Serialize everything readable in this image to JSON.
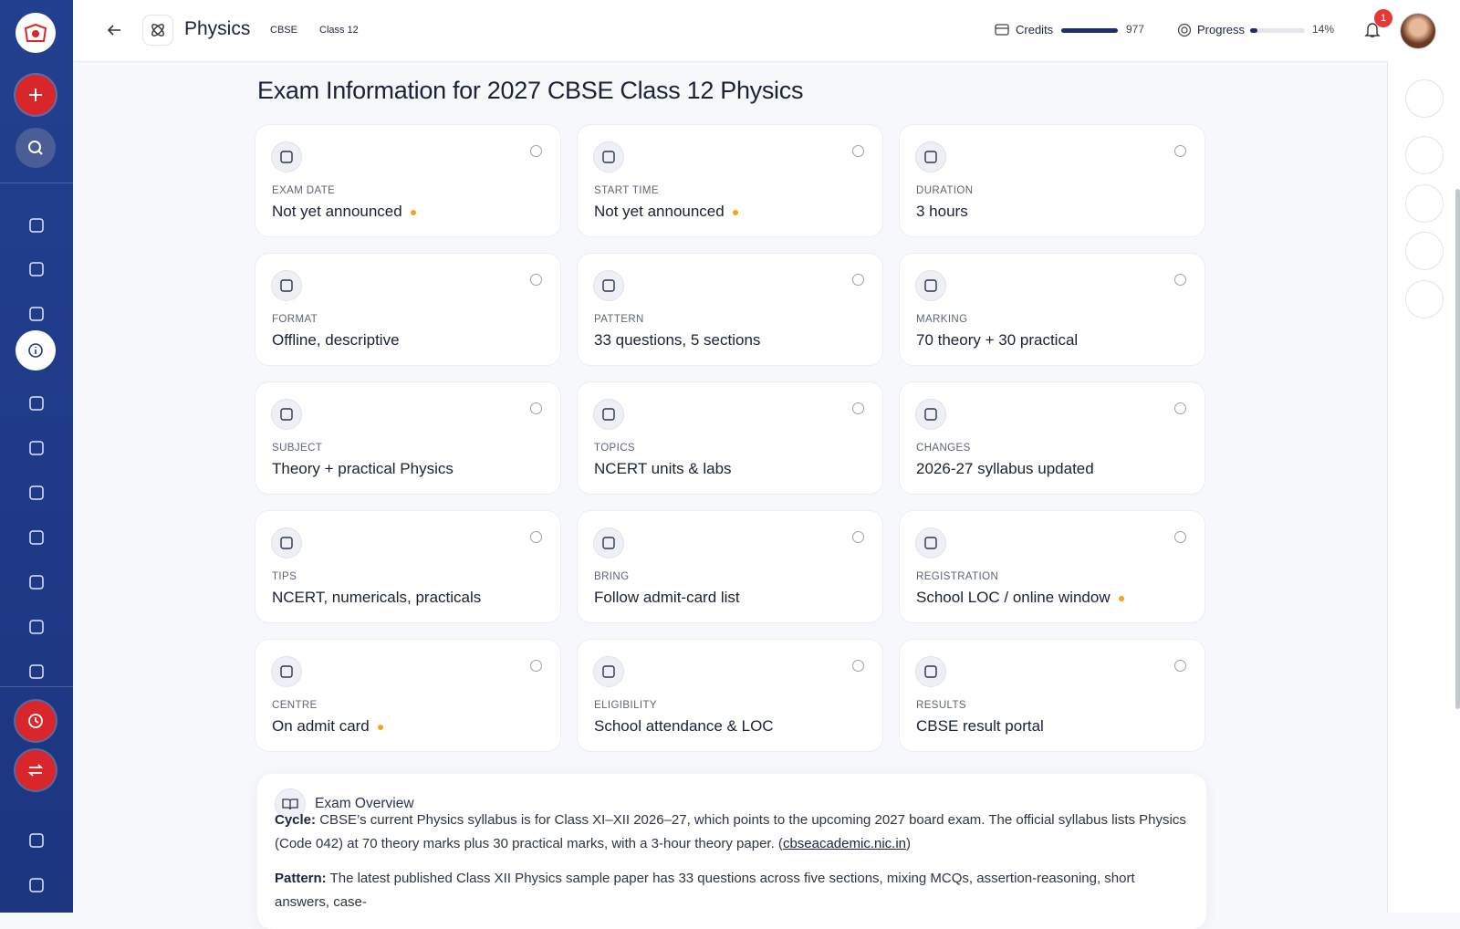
{
  "header": {
    "title": "Physics",
    "tags": [
      "CBSE",
      "Class 12"
    ],
    "credits_label": "Credits",
    "credits_value": "977",
    "progress_label": "Progress",
    "progress": {
      "value": 14,
      "label": "14%"
    },
    "notifications": "1"
  },
  "page_title": "Exam Information for 2027 CBSE Class 12 Physics",
  "cards": [
    {
      "label": "EXAM DATE",
      "value": "Not yet announced",
      "pending": true
    },
    {
      "label": "START TIME",
      "value": "Not yet announced",
      "pending": true
    },
    {
      "label": "DURATION",
      "value": "3 hours",
      "pending": false
    },
    {
      "label": "FORMAT",
      "value": "Offline, descriptive",
      "pending": false
    },
    {
      "label": "PATTERN",
      "value": "33 questions, 5 sections",
      "pending": false
    },
    {
      "label": "MARKING",
      "value": "70 theory + 30 practical",
      "pending": false
    },
    {
      "label": "SUBJECT",
      "value": "Theory + practical Physics",
      "pending": false
    },
    {
      "label": "TOPICS",
      "value": "NCERT units & labs",
      "pending": false
    },
    {
      "label": "CHANGES",
      "value": "2026-27 syllabus updated",
      "pending": false
    },
    {
      "label": "TIPS",
      "value": "NCERT, numericals, practicals",
      "pending": false
    },
    {
      "label": "BRING",
      "value": "Follow admit-card list",
      "pending": false
    },
    {
      "label": "REGISTRATION",
      "value": "School LOC / online window",
      "pending": true
    },
    {
      "label": "CENTRE",
      "value": "On admit card",
      "pending": true
    },
    {
      "label": "ELIGIBILITY",
      "value": "School attendance & LOC",
      "pending": false
    },
    {
      "label": "RESULTS",
      "value": "CBSE result portal",
      "pending": false
    }
  ],
  "overview": {
    "title": "Exam Overview",
    "paragraphs": [
      {
        "label": "Cycle:",
        "text": " CBSE’s current Physics syllabus is for Class XI–XII 2026–27, which points to the upcoming 2027 board exam. The official syllabus lists Physics (Code 042) at 70 theory marks plus 30 practical marks, with a 3-hour theory paper. (",
        "link": "cbseacademic.nic.in",
        "after": ")"
      },
      {
        "label": "Pattern:",
        "text": " The latest published Class XII Physics sample paper has 33 questions across five sections, mixing MCQs, assertion-reasoning, short answers, case-"
      }
    ]
  }
}
